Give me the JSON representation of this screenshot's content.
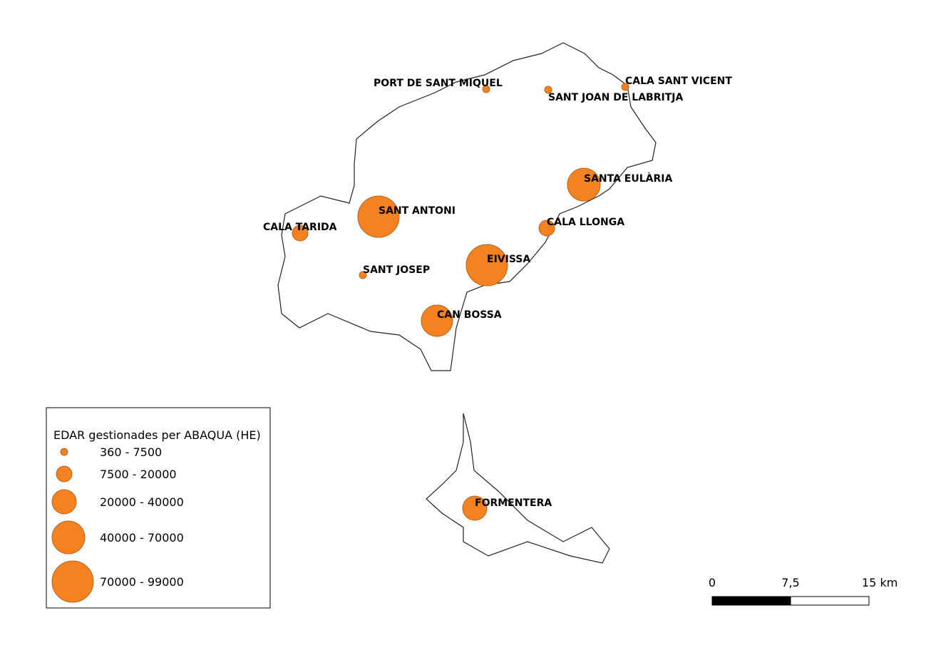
{
  "map": {
    "places": [
      {
        "label": "PORT DE SANT MIQUEL"
      },
      {
        "label": "SANT JOAN DE LABRITJA"
      },
      {
        "label": "CALA SANT VICENT"
      },
      {
        "label": "SANTA EULÀRIA"
      },
      {
        "label": "SANT ANTONI"
      },
      {
        "label": "CALA TARIDA"
      },
      {
        "label": "CALA LLONGA"
      },
      {
        "label": "EIVISSA"
      },
      {
        "label": "SANT JOSEP"
      },
      {
        "label": "CAN BOSSA"
      },
      {
        "label": "FORMENTERA"
      }
    ],
    "legend": {
      "title": "EDAR gestionades per ABAQUA (HE)",
      "items": [
        "360 - 7500",
        "7500 - 20000",
        "20000 - 40000",
        "40000 - 70000",
        "70000 - 99000"
      ]
    },
    "scale_bar": {
      "labels": [
        "0",
        "7,5",
        "15 km"
      ]
    }
  }
}
